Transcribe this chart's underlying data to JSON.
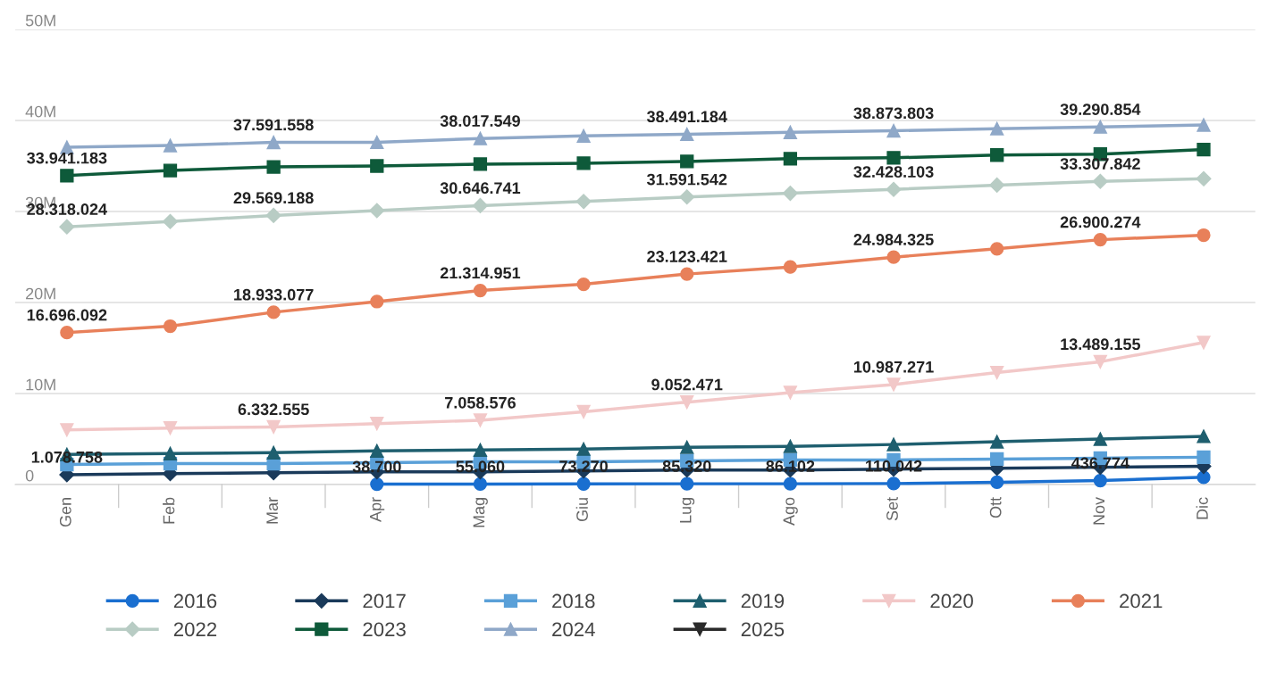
{
  "chart_data": {
    "type": "line",
    "categories": [
      "Gen",
      "Feb",
      "Mar",
      "Apr",
      "Mag",
      "Giu",
      "Lug",
      "Ago",
      "Set",
      "Ott",
      "Nov",
      "Dic"
    ],
    "ylim": [
      0,
      50000000
    ],
    "yticks": [
      {
        "value": 0,
        "label": "0"
      },
      {
        "value": 10000000,
        "label": "10M"
      },
      {
        "value": 20000000,
        "label": "20M"
      },
      {
        "value": 30000000,
        "label": "30M"
      },
      {
        "value": 40000000,
        "label": "40M"
      },
      {
        "value": 50000000,
        "label": "50M"
      }
    ],
    "grid": "y",
    "legend": "bottom",
    "line_style": "solid",
    "series": [
      {
        "name": "2016",
        "color": "#1a6fd0",
        "marker": "circle",
        "values": [
          null,
          null,
          null,
          38700,
          55060,
          73270,
          85320,
          86102,
          110042,
          250000,
          436774,
          800000
        ],
        "value_labels": [
          null,
          null,
          null,
          "38.700",
          "55.060",
          "73.270",
          "85.320",
          "86.102",
          "110.042",
          null,
          "436.774",
          null
        ]
      },
      {
        "name": "2017",
        "color": "#1a3a5a",
        "marker": "diamond",
        "values": [
          1078758,
          1200000,
          1300000,
          1400000,
          1400000,
          1500000,
          1600000,
          1600000,
          1700000,
          1800000,
          1900000,
          2000000
        ],
        "value_labels": [
          "1.078.758",
          null,
          null,
          null,
          null,
          null,
          null,
          null,
          null,
          null,
          null,
          null
        ]
      },
      {
        "name": "2018",
        "color": "#5aa0d8",
        "marker": "square",
        "values": [
          2200000,
          2300000,
          2300000,
          2400000,
          2500000,
          2500000,
          2600000,
          2700000,
          2700000,
          2800000,
          2900000,
          3000000
        ]
      },
      {
        "name": "2019",
        "color": "#1f5f6f",
        "marker": "triangle",
        "values": [
          3300000,
          3400000,
          3500000,
          3700000,
          3800000,
          3900000,
          4100000,
          4200000,
          4400000,
          4700000,
          5000000,
          5300000
        ]
      },
      {
        "name": "2020",
        "color": "#f2c8c8",
        "marker": "triangle_down",
        "values": [
          6000000,
          6200000,
          6332555,
          6700000,
          7058576,
          8000000,
          9052471,
          10100000,
          10987271,
          12300000,
          13489155,
          15600000
        ],
        "value_labels": [
          null,
          null,
          "6.332.555",
          null,
          "7.058.576",
          null,
          "9.052.471",
          null,
          "10.987.271",
          null,
          "13.489.155",
          null
        ]
      },
      {
        "name": "2021",
        "color": "#e8805a",
        "marker": "circle",
        "values": [
          16696092,
          17400000,
          18933077,
          20100000,
          21314951,
          22000000,
          23123421,
          23900000,
          24984325,
          25900000,
          26900274,
          27400000
        ],
        "value_labels": [
          "16.696.092",
          null,
          "18.933.077",
          null,
          "21.314.951",
          null,
          "23.123.421",
          null,
          "24.984.325",
          null,
          "26.900.274",
          null
        ]
      },
      {
        "name": "2022",
        "color": "#b8ccc4",
        "marker": "diamond",
        "values": [
          28318024,
          28900000,
          29569188,
          30100000,
          30646741,
          31100000,
          31591542,
          32000000,
          32428103,
          32900000,
          33307842,
          33600000
        ],
        "value_labels": [
          "28.318.024",
          null,
          "29.569.188",
          null,
          "30.646.741",
          null,
          "31.591.542",
          null,
          "32.428.103",
          null,
          "33.307.842",
          null
        ]
      },
      {
        "name": "2023",
        "color": "#0e5a3a",
        "marker": "square",
        "values": [
          33941183,
          34500000,
          34900000,
          35000000,
          35200000,
          35300000,
          35500000,
          35800000,
          35900000,
          36200000,
          36300000,
          36800000
        ],
        "value_labels": [
          "33.941.183",
          null,
          null,
          null,
          null,
          null,
          null,
          null,
          null,
          null,
          null,
          null
        ]
      },
      {
        "name": "2024",
        "color": "#8fa8c8",
        "marker": "triangle",
        "values": [
          37050000,
          37250000,
          37591558,
          37600000,
          38017549,
          38300000,
          38491184,
          38700000,
          38873803,
          39100000,
          39290854,
          39500000
        ],
        "value_labels": [
          null,
          null,
          "37.591.558",
          null,
          "38.017.549",
          null,
          "38.491.184",
          null,
          "38.873.803",
          null,
          "39.290.854",
          null
        ]
      },
      {
        "name": "2025",
        "color": "#2a2a2a",
        "marker": "triangle_down",
        "values": [
          null,
          null,
          null,
          null,
          null,
          null,
          null,
          null,
          null,
          null,
          null,
          null
        ]
      }
    ]
  }
}
